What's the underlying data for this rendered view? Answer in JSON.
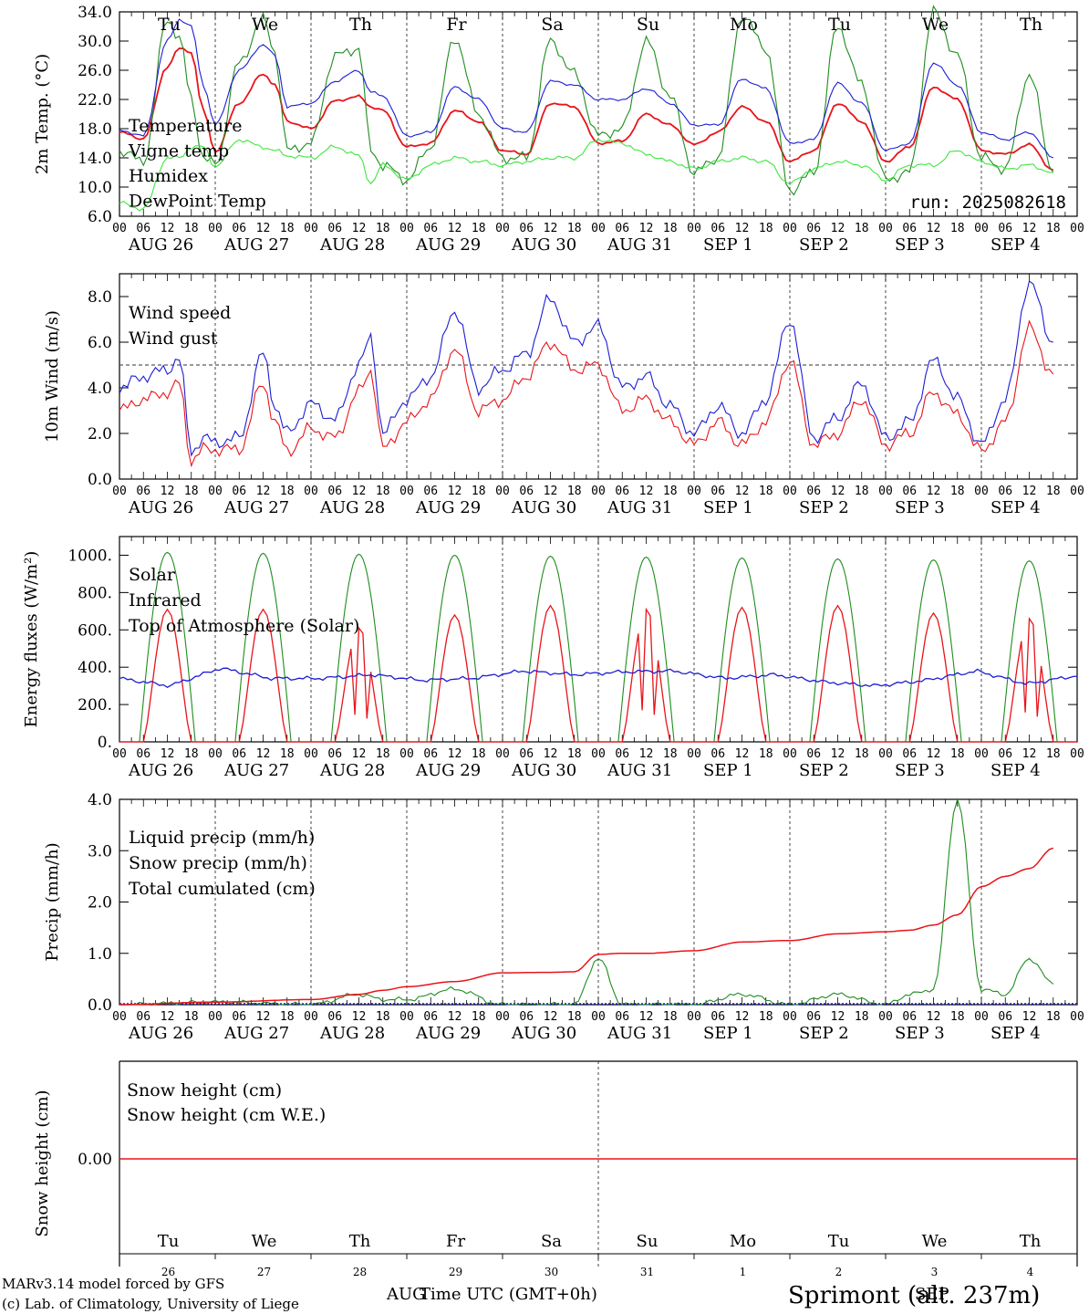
{
  "days": {
    "weekdays": [
      {
        "label": "Tu",
        "color": "#000000"
      },
      {
        "label": "We",
        "color": "#000000"
      },
      {
        "label": "Th",
        "color": "#000000"
      },
      {
        "label": "Fr",
        "color": "#000000"
      },
      {
        "label": "Sa",
        "color": "#e8141a"
      },
      {
        "label": "Su",
        "color": "#e8141a"
      },
      {
        "label": "Mo",
        "color": "#000000"
      },
      {
        "label": "Tu",
        "color": "#000000"
      },
      {
        "label": "We",
        "color": "#000000"
      },
      {
        "label": "Th",
        "color": "#000000"
      }
    ],
    "dates": [
      "AUG 26",
      "AUG 27",
      "AUG 28",
      "AUG 29",
      "AUG 30",
      "AUG 31",
      "SEP  1",
      "SEP  2",
      "SEP  3",
      "SEP  4"
    ],
    "day_numbers": [
      "26",
      "27",
      "28",
      "29",
      "30",
      "31",
      "1",
      "2",
      "3",
      "4"
    ],
    "hour_ticks": [
      "00",
      "06",
      "12",
      "18"
    ],
    "hour_end": "00"
  },
  "colors": {
    "red": "#e8141a",
    "green": "#1f8c1f",
    "blue": "#1c1cd6",
    "lightgreen": "#3ee63e",
    "label_blue": "#2a2ae0"
  },
  "footer": {
    "model": "MARv3.14 model forced by GFS",
    "copyright": "(c) Lab. of Climatology, University of Liege",
    "xlabel": "Time UTC (GMT+0h)",
    "month_left": "AUG",
    "month_right": "SEP",
    "station": "Sprimont (alt. 237m)"
  },
  "chart_data": [
    {
      "type": "line",
      "ylabel": "2m Temp. (°C)",
      "ylim": [
        6.0,
        34.0
      ],
      "yticks": [
        "6.0",
        "10.0",
        "14.0",
        "18.0",
        "22.0",
        "26.0",
        "30.0",
        "34.0"
      ],
      "run_label": "run: 2025082618",
      "x_hours": [
        0,
        6,
        12,
        15,
        18,
        21,
        24,
        30,
        36,
        39,
        42,
        48,
        54,
        60,
        63,
        66,
        72,
        78,
        84,
        90,
        96,
        102,
        108,
        114,
        120,
        126,
        132,
        138,
        144,
        150,
        156,
        162,
        168,
        174,
        180,
        186,
        192,
        198,
        204,
        210,
        216,
        222,
        228,
        234
      ],
      "series": [
        {
          "name": "Temperature",
          "color": "red",
          "values": [
            17.5,
            16.6,
            26.5,
            29.0,
            28.5,
            20.5,
            14.8,
            21.5,
            25.5,
            24.0,
            19.0,
            18.0,
            21.8,
            22.4,
            21.0,
            20.5,
            15.5,
            16.0,
            20.5,
            19.0,
            15.0,
            14.5,
            21.5,
            21.0,
            16.0,
            16.3,
            20.0,
            18.5,
            15.8,
            17.5,
            21.0,
            19.0,
            13.5,
            15.0,
            21.5,
            19.0,
            13.5,
            15.5,
            23.7,
            22.0,
            15.0,
            14.5,
            15.8,
            12.3
          ]
        },
        {
          "name": "Vigne temp",
          "color": "green",
          "values": [
            15.0,
            13.5,
            33.0,
            30.5,
            22.0,
            14.0,
            13.0,
            27.0,
            33.0,
            28.5,
            15.0,
            16.0,
            28.0,
            29.0,
            15.0,
            13.0,
            11.0,
            15.5,
            30.5,
            20.0,
            14.0,
            14.0,
            30.0,
            25.5,
            17.0,
            18.0,
            30.0,
            22.5,
            12.0,
            14.0,
            33.5,
            29.0,
            9.5,
            12.0,
            32.0,
            24.0,
            11.0,
            12.0,
            34.0,
            28.0,
            14.0,
            12.5,
            25.5,
            12.0
          ]
        },
        {
          "name": "Humidex",
          "color": "blue",
          "values": [
            17.8,
            17.0,
            30.0,
            33.0,
            32.0,
            24.0,
            18.5,
            26.0,
            29.5,
            28.0,
            21.0,
            21.5,
            24.5,
            26.0,
            23.0,
            22.5,
            17.0,
            17.5,
            23.7,
            22.0,
            18.0,
            17.5,
            24.5,
            24.0,
            22.0,
            22.0,
            23.5,
            21.5,
            18.5,
            18.5,
            24.8,
            23.5,
            16.0,
            16.5,
            24.2,
            21.5,
            15.0,
            16.0,
            27.0,
            24.0,
            17.5,
            16.5,
            17.5,
            14.0
          ]
        },
        {
          "name": "DewPoint Temp",
          "color": "lightgreen",
          "values": [
            7.8,
            7.0,
            14.0,
            14.0,
            15.5,
            15.5,
            12.8,
            16.5,
            15.5,
            15.0,
            14.3,
            14.0,
            15.5,
            14.3,
            10.5,
            13.0,
            11.0,
            13.0,
            14.0,
            13.5,
            13.0,
            13.5,
            14.0,
            14.0,
            16.5,
            16.0,
            14.5,
            13.5,
            12.5,
            13.5,
            14.0,
            13.5,
            10.5,
            12.5,
            13.5,
            13.0,
            11.0,
            13.0,
            13.0,
            15.0,
            13.5,
            12.5,
            13.0,
            12.0
          ]
        }
      ]
    },
    {
      "type": "line",
      "ylabel": "10m Wind (m/s)",
      "ylim": [
        0.0,
        9.0
      ],
      "yticks": [
        "0.0",
        "2.0",
        "4.0",
        "6.0",
        "8.0"
      ],
      "reference_line": 5.0,
      "x_hours": [
        0,
        6,
        12,
        15,
        18,
        21,
        24,
        30,
        36,
        39,
        42,
        48,
        54,
        60,
        63,
        66,
        72,
        78,
        84,
        90,
        96,
        102,
        108,
        114,
        120,
        126,
        132,
        138,
        144,
        150,
        156,
        162,
        168,
        174,
        180,
        186,
        192,
        198,
        204,
        210,
        216,
        222,
        228,
        234
      ],
      "series": [
        {
          "name": "Wind speed",
          "color": "red",
          "values": [
            3.0,
            3.5,
            3.8,
            4.2,
            0.8,
            1.3,
            1.3,
            1.3,
            4.2,
            2.5,
            1.2,
            2.2,
            1.8,
            3.8,
            4.8,
            1.3,
            2.5,
            3.5,
            5.7,
            3.0,
            3.5,
            4.5,
            6.0,
            4.8,
            5.0,
            3.0,
            3.5,
            2.5,
            1.5,
            2.5,
            1.5,
            2.5,
            5.2,
            1.5,
            2.0,
            3.5,
            1.5,
            2.0,
            3.8,
            2.8,
            1.2,
            2.5,
            6.6,
            4.6
          ]
        },
        {
          "name": "Wind gust",
          "color": "blue",
          "values": [
            4.0,
            4.5,
            4.8,
            5.3,
            1.2,
            1.8,
            1.6,
            1.8,
            5.5,
            3.2,
            2.0,
            3.3,
            2.6,
            5.0,
            6.2,
            2.0,
            3.5,
            4.5,
            7.4,
            4.0,
            4.8,
            5.5,
            7.9,
            6.0,
            6.7,
            4.0,
            4.5,
            3.2,
            2.0,
            3.2,
            2.0,
            3.5,
            7.0,
            1.8,
            2.7,
            4.2,
            1.8,
            2.5,
            5.2,
            3.5,
            1.5,
            3.5,
            8.6,
            6.0
          ]
        }
      ]
    },
    {
      "type": "line",
      "ylabel": "Energy fluxes (W/m²)",
      "ylim": [
        0,
        1100
      ],
      "yticks": [
        "0.",
        "200.",
        "400.",
        "600.",
        "800.",
        "1000."
      ],
      "series": [
        {
          "name": "Solar",
          "color": "red",
          "peaks": [
            710,
            710,
            610,
            680,
            730,
            710,
            720,
            730,
            690,
            660
          ],
          "note": "diurnal cycle, zero at night"
        },
        {
          "name": "Infrared",
          "color": "blue",
          "values": [
            340,
            300,
            395,
            340,
            340,
            360,
            330,
            340,
            380,
            360,
            375,
            380,
            340,
            360,
            320,
            300,
            330,
            380,
            310,
            355
          ]
        },
        {
          "name": "Top of Atmosphere (Solar)",
          "color": "green",
          "peaks": [
            1015,
            1010,
            1005,
            1000,
            995,
            990,
            985,
            980,
            975,
            970
          ],
          "note": "diurnal cycle, zero at night"
        }
      ]
    },
    {
      "type": "line",
      "ylabel": "Precip (mm/h)",
      "ylim": [
        0.0,
        4.0
      ],
      "yticks": [
        "0.0",
        "1.0",
        "2.0",
        "3.0",
        "4.0"
      ],
      "x_hours": [
        0,
        24,
        48,
        60,
        66,
        72,
        84,
        96,
        108,
        114,
        120,
        126,
        132,
        144,
        156,
        168,
        180,
        192,
        198,
        204,
        210,
        216,
        222,
        228,
        234
      ],
      "series": [
        {
          "name": "Liquid precip (mm/h)",
          "color": "green",
          "values": [
            0.0,
            0.05,
            0.0,
            0.2,
            0.1,
            0.1,
            0.3,
            0.0,
            0.0,
            0.0,
            0.9,
            0.0,
            0.0,
            0.0,
            0.2,
            0.0,
            0.2,
            0.0,
            0.2,
            0.3,
            4.0,
            0.3,
            0.2,
            0.9,
            0.4
          ]
        },
        {
          "name": "Snow precip (mm/h)",
          "color": "blue",
          "values": [
            0,
            0,
            0,
            0,
            0,
            0,
            0,
            0,
            0,
            0,
            0,
            0,
            0,
            0,
            0,
            0,
            0,
            0,
            0,
            0,
            0,
            0,
            0,
            0,
            0
          ]
        },
        {
          "name": "Total cumulated (cm)",
          "color": "red",
          "values": [
            0.0,
            0.05,
            0.1,
            0.2,
            0.28,
            0.35,
            0.45,
            0.62,
            0.63,
            0.64,
            0.98,
            1.0,
            1.0,
            1.05,
            1.22,
            1.25,
            1.38,
            1.42,
            1.45,
            1.55,
            1.75,
            2.3,
            2.5,
            2.65,
            3.05
          ]
        }
      ]
    },
    {
      "type": "line",
      "ylabel": "Snow height (cm)",
      "yticks": [
        "0.00"
      ],
      "series": [
        {
          "name": "Snow height (cm)",
          "color": "red",
          "values": [
            0.0,
            0.0
          ]
        },
        {
          "name": "Snow height (cm W.E.)",
          "color": "blue",
          "values": [
            0.0,
            0.0
          ]
        }
      ]
    }
  ]
}
